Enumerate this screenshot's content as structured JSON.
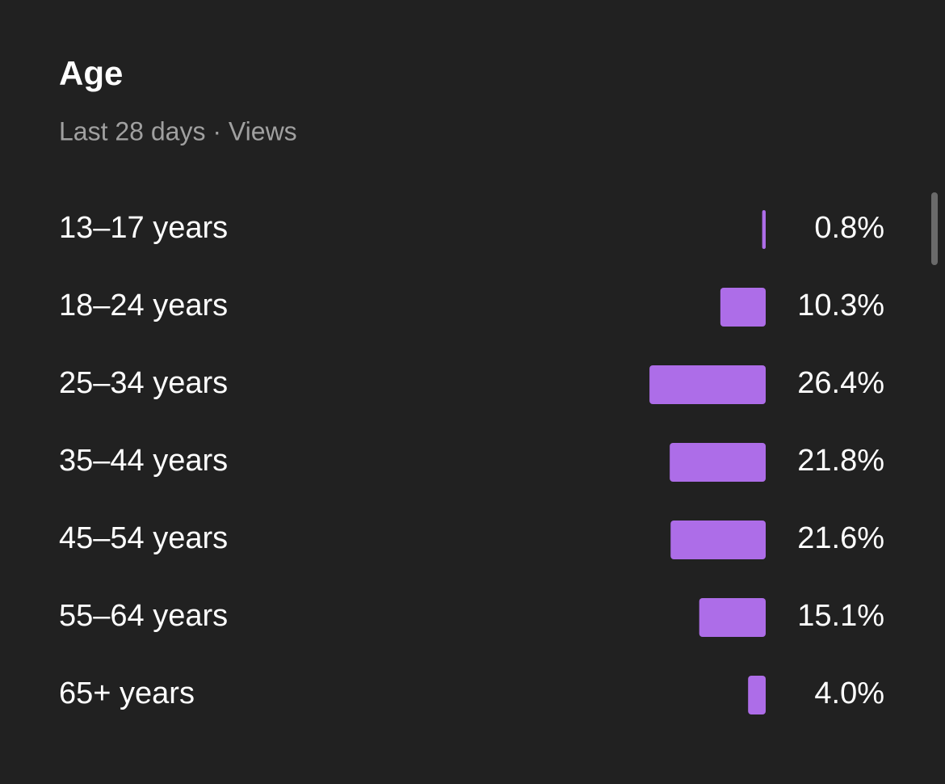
{
  "chart_data": {
    "type": "bar",
    "orientation": "horizontal",
    "title": "Age",
    "subtitle": "Last 28 days · Views",
    "categories": [
      "13–17 years",
      "18–24 years",
      "25–34 years",
      "35–44 years",
      "45–54 years",
      "55–64 years",
      "65+ years"
    ],
    "values": [
      0.8,
      10.3,
      26.4,
      21.8,
      21.6,
      15.1,
      4.0
    ],
    "value_labels": [
      "0.8%",
      "10.3%",
      "26.4%",
      "21.8%",
      "21.6%",
      "15.1%",
      "4.0%"
    ],
    "color": "#ad6de8"
  }
}
